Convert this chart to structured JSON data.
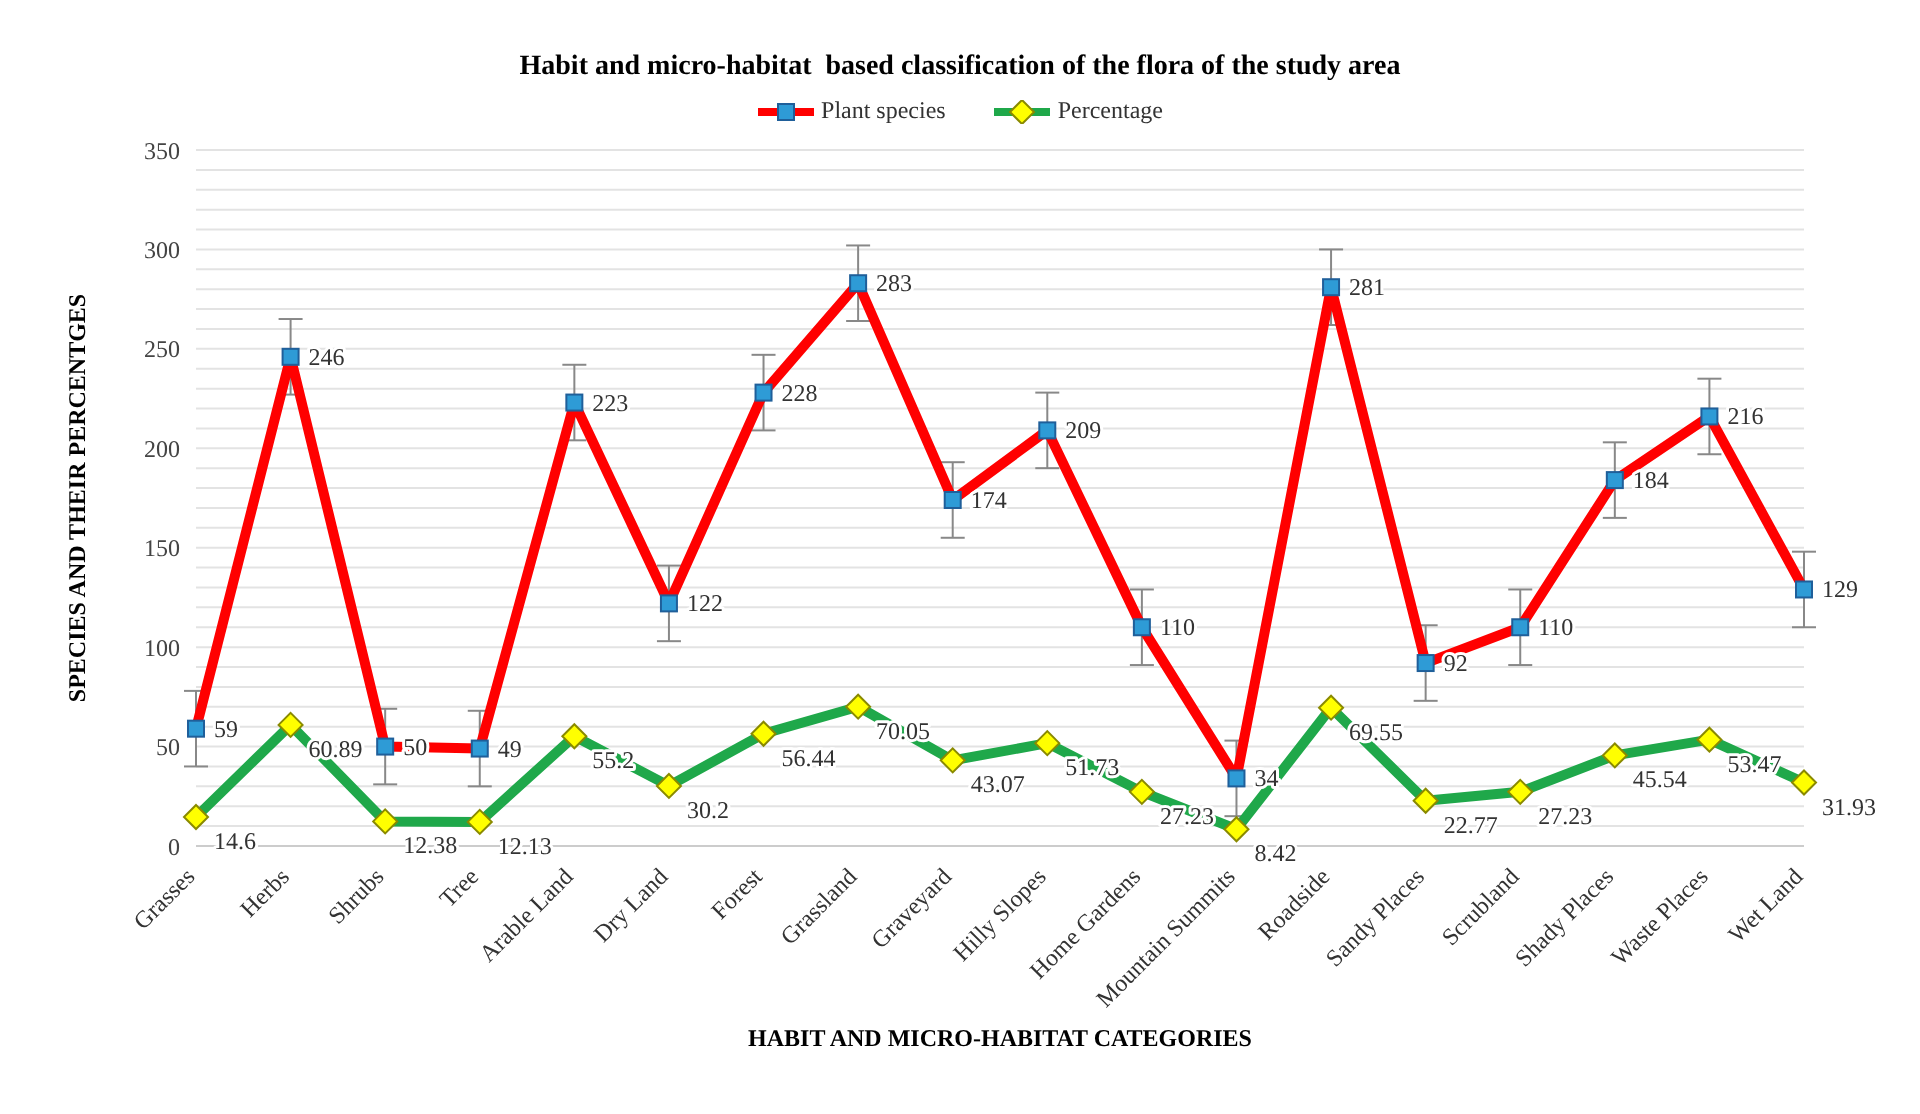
{
  "chart_data": {
    "type": "line",
    "title": "Habit and micro-habitat  based classification of the flora of the study area",
    "xlabel": "HABIT AND MICRO-HABITAT CATEGORIES",
    "ylabel": "SPECIES AND THEIR PERCENTGES",
    "categories": [
      "Grasses",
      "Herbs",
      "Shrubs",
      "Tree",
      "Arable Land",
      "Dry Land",
      "Forest",
      "Grassland",
      "Graveyard",
      "Hilly Slopes",
      "Home Gardens",
      "Mountain Summits",
      "Roadside",
      "Sandy Places",
      "Scrubland",
      "Shady Places",
      "Waste Places",
      "Wet Land"
    ],
    "series": [
      {
        "name": "Plant species",
        "color": "#ff0000",
        "marker": "square",
        "values": [
          59,
          246,
          50,
          49,
          223,
          122,
          228,
          283,
          174,
          209,
          110,
          34,
          281,
          92,
          110,
          184,
          216,
          129
        ],
        "errors": [
          19,
          19,
          19,
          19,
          19,
          19,
          19,
          19,
          19,
          19,
          19,
          19,
          19,
          19,
          19,
          19,
          19,
          19
        ]
      },
      {
        "name": "Percentage",
        "color": "#1fa84a",
        "marker": "diamond",
        "values": [
          14.6,
          60.89,
          12.38,
          12.13,
          55.2,
          30.2,
          56.44,
          70.05,
          43.07,
          51.73,
          27.23,
          8.42,
          69.55,
          22.77,
          27.23,
          45.54,
          53.47,
          31.93
        ]
      }
    ],
    "ylim": [
      0,
      350
    ],
    "yticks": [
      0,
      {
        "value": 10,
        "label": null
      },
      {
        "value": 20,
        "label": null
      },
      {
        "value": 30,
        "label": null
      },
      {
        "value": 40,
        "label": null
      },
      50,
      {
        "value": 60,
        "label": null
      },
      {
        "value": 70,
        "label": null
      },
      {
        "value": 80,
        "label": null
      },
      {
        "value": 90,
        "label": null
      },
      100,
      {
        "value": 110,
        "label": null
      },
      {
        "value": 120,
        "label": null
      },
      {
        "value": 130,
        "label": null
      },
      {
        "value": 140,
        "label": null
      },
      150,
      {
        "value": 160,
        "label": null
      },
      {
        "value": 170,
        "label": null
      },
      {
        "value": 180,
        "label": null
      },
      {
        "value": 190,
        "label": null
      },
      200,
      {
        "value": 210,
        "label": null
      },
      {
        "value": 220,
        "label": null
      },
      {
        "value": 230,
        "label": null
      },
      {
        "value": 240,
        "label": null
      },
      250,
      {
        "value": 260,
        "label": null
      },
      {
        "value": 270,
        "label": null
      },
      {
        "value": 280,
        "label": null
      },
      {
        "value": 290,
        "label": null
      },
      300,
      {
        "value": 310,
        "label": null
      },
      {
        "value": 320,
        "label": null
      },
      {
        "value": 330,
        "label": null
      },
      {
        "value": 340,
        "label": null
      },
      350
    ],
    "grid": true,
    "legend": "top",
    "data_labels": true,
    "line_style": "solid"
  }
}
